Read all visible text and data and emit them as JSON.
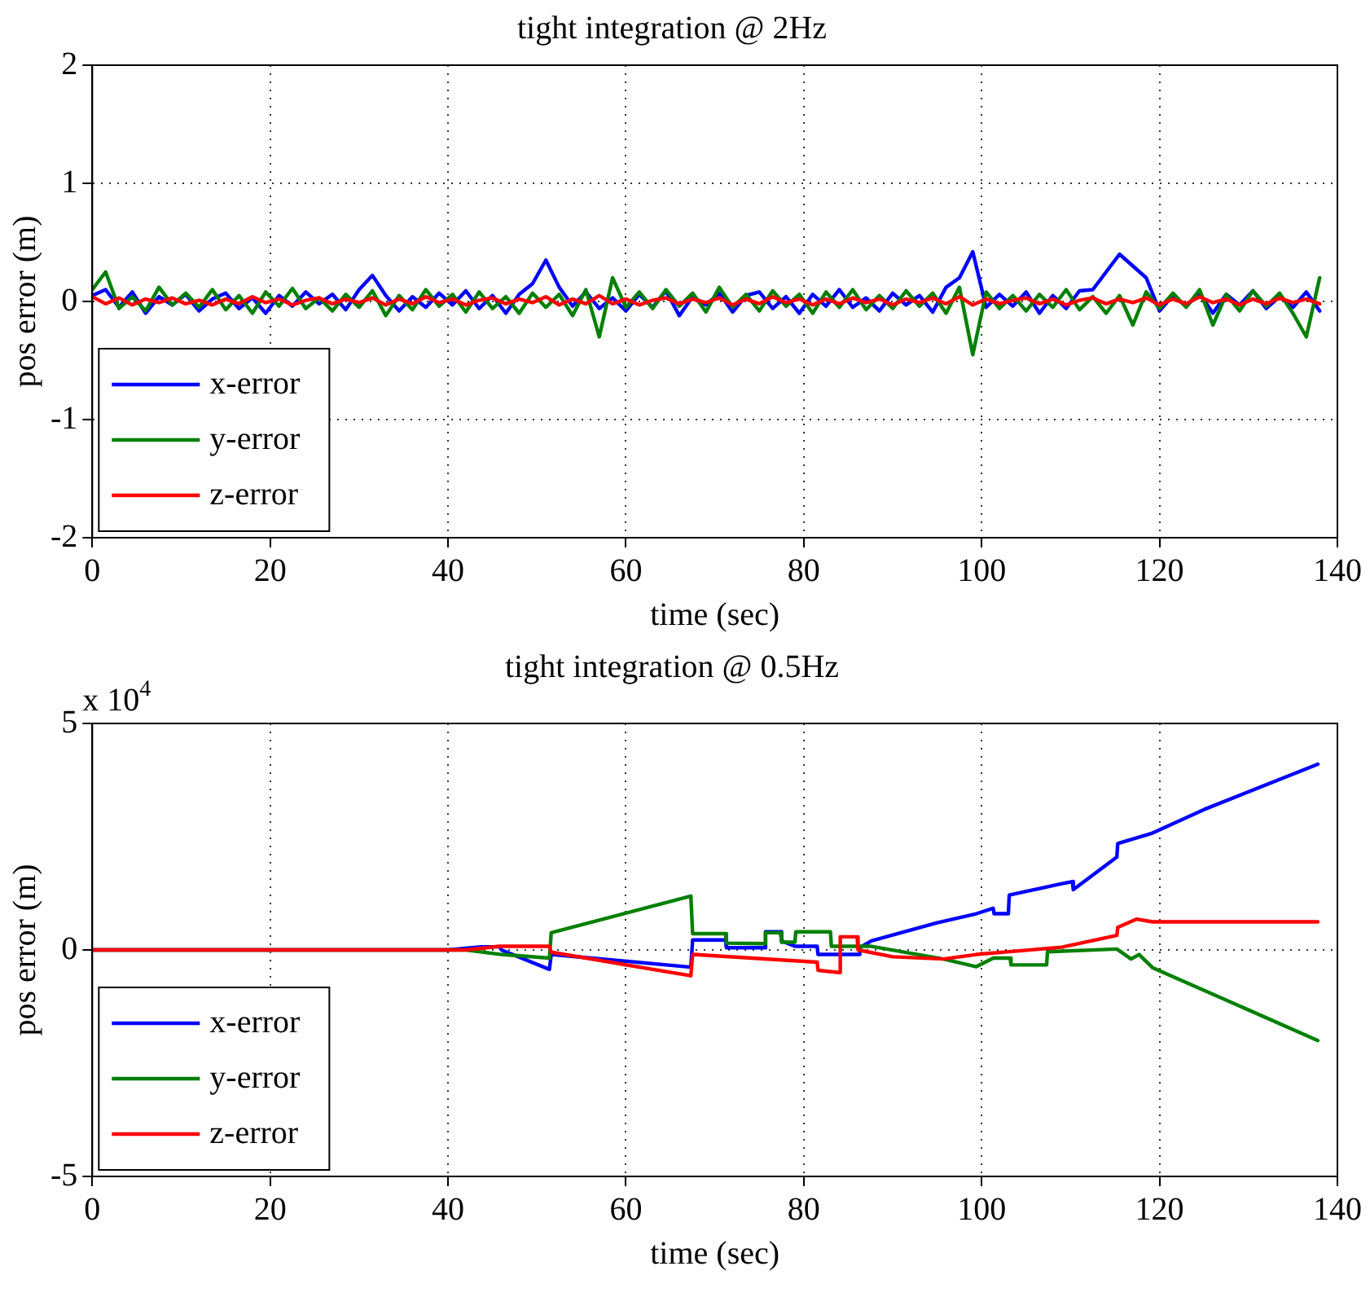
{
  "chart_data": [
    {
      "type": "line",
      "title": "tight integration @ 2Hz",
      "xlabel": "time (sec)",
      "ylabel": "pos error (m)",
      "xlim": [
        0,
        140
      ],
      "xticks": [
        0,
        20,
        40,
        60,
        80,
        100,
        120,
        140
      ],
      "ylim": [
        -2,
        2
      ],
      "yticks": [
        -2,
        -1,
        0,
        1,
        2
      ],
      "grid": true,
      "legend": "bottom left",
      "marker": "none",
      "line_style": "solid",
      "x": [
        0,
        1.5,
        3,
        4.5,
        6,
        7.5,
        9,
        10.5,
        12,
        13.5,
        15,
        16.5,
        18,
        19.5,
        21,
        22.5,
        24,
        25.5,
        27,
        28.5,
        30,
        31.5,
        33,
        34.5,
        36,
        37.5,
        39,
        40.5,
        42,
        43.5,
        45,
        46.5,
        48,
        49.5,
        51,
        52.5,
        54,
        55.5,
        57,
        58.5,
        60,
        61.5,
        63,
        64.5,
        66,
        67.5,
        69,
        70.5,
        72,
        73.5,
        75,
        76.5,
        78,
        79.5,
        81,
        82.5,
        84,
        85.5,
        87,
        88.5,
        90,
        91.5,
        93,
        94.5,
        96,
        97.5,
        99,
        100.5,
        102,
        103.5,
        105,
        106.5,
        108,
        109.5,
        111,
        112.5,
        114,
        115.5,
        117,
        118.5,
        120,
        121.5,
        123,
        124.5,
        126,
        127.5,
        129,
        130.5,
        132,
        133.5,
        135,
        136.5,
        138
      ],
      "series": [
        {
          "name": "x-error",
          "color": "#0000ff",
          "values": [
            0.05,
            0.1,
            -0.05,
            0.08,
            -0.1,
            0.04,
            -0.03,
            0.06,
            -0.08,
            0.02,
            0.07,
            -0.06,
            0.03,
            -0.1,
            0.05,
            -0.04,
            0.08,
            -0.02,
            0.06,
            -0.07,
            0.1,
            0.22,
            0.05,
            -0.08,
            0.04,
            -0.05,
            0.07,
            -0.03,
            0.09,
            -0.06,
            0.05,
            -0.1,
            0.06,
            0.15,
            0.35,
            0.12,
            -0.04,
            0.08,
            -0.06,
            0.03,
            -0.08,
            0.06,
            -0.05,
            0.09,
            -0.12,
            0.04,
            -0.03,
            0.07,
            -0.09,
            0.05,
            0.08,
            -0.06,
            0.04,
            -0.1,
            0.06,
            -0.04,
            0.1,
            -0.05,
            0.03,
            -0.08,
            0.07,
            -0.03,
            0.05,
            -0.09,
            0.12,
            0.2,
            0.42,
            -0.05,
            0.06,
            -0.04,
            0.08,
            -0.1,
            0.05,
            -0.06,
            0.09,
            0.1,
            0.25,
            0.4,
            0.3,
            0.2,
            -0.08,
            0.05,
            -0.04,
            0.07,
            -0.1,
            0.06,
            -0.03,
            0.09,
            -0.06,
            0.04,
            -0.05,
            0.08,
            -0.08
          ]
        },
        {
          "name": "y-error",
          "color": "#008000",
          "values": [
            0.1,
            0.25,
            -0.06,
            0.04,
            -0.08,
            0.12,
            -0.03,
            0.07,
            -0.05,
            0.1,
            -0.07,
            0.05,
            -0.1,
            0.08,
            -0.04,
            0.11,
            -0.06,
            0.03,
            -0.08,
            0.06,
            -0.05,
            0.09,
            -0.12,
            0.05,
            -0.07,
            0.1,
            -0.04,
            0.06,
            -0.09,
            0.08,
            -0.06,
            0.04,
            -0.1,
            0.07,
            -0.05,
            0.06,
            -0.12,
            0.1,
            -0.3,
            0.2,
            -0.05,
            0.08,
            -0.06,
            0.1,
            -0.04,
            0.07,
            -0.09,
            0.12,
            -0.05,
            0.06,
            -0.08,
            0.09,
            -0.04,
            0.06,
            -0.1,
            0.08,
            -0.05,
            0.1,
            -0.07,
            0.05,
            -0.06,
            0.09,
            -0.04,
            0.07,
            -0.1,
            0.12,
            -0.45,
            0.08,
            -0.06,
            0.05,
            -0.08,
            0.06,
            -0.05,
            0.1,
            -0.07,
            0.04,
            -0.1,
            0.05,
            -0.2,
            0.08,
            -0.06,
            0.07,
            -0.05,
            0.1,
            -0.2,
            0.06,
            -0.08,
            0.09,
            -0.04,
            0.07,
            -0.1,
            -0.3,
            0.2
          ]
        },
        {
          "name": "z-error",
          "color": "#ff0000",
          "values": [
            0.04,
            -0.02,
            0.03,
            -0.03,
            0.02,
            -0.01,
            0.03,
            -0.02,
            0.01,
            -0.03,
            0.02,
            -0.02,
            0.04,
            -0.01,
            0.02,
            -0.03,
            0.01,
            0.03,
            -0.02,
            0.02,
            -0.01,
            0.03,
            -0.03,
            0.02,
            -0.02,
            0.04,
            -0.01,
            0.02,
            -0.03,
            0.01,
            0.03,
            -0.02,
            0.02,
            -0.01,
            0.04,
            -0.03,
            0.02,
            -0.02,
            0.05,
            -0.02,
            0.02,
            -0.03,
            0.01,
            0.03,
            -0.02,
            0.02,
            -0.01,
            0.03,
            -0.03,
            0.02,
            -0.02,
            0.04,
            -0.01,
            0.02,
            -0.03,
            0.02,
            -0.02,
            0.03,
            -0.01,
            0.02,
            -0.03,
            0.02,
            -0.01,
            0.03,
            -0.02,
            0.04,
            -0.03,
            0.02,
            -0.02,
            0.01,
            0.03,
            -0.02,
            0.02,
            -0.03,
            0.01,
            0.03,
            -0.02,
            0.02,
            -0.01,
            0.03,
            -0.03,
            0.02,
            -0.02,
            0.04,
            -0.01,
            0.02,
            -0.03,
            0.02,
            -0.02,
            0.03,
            -0.01,
            0.02,
            -0.02
          ]
        }
      ]
    },
    {
      "type": "line",
      "title": "tight integration @ 0.5Hz",
      "xlabel": "time (sec)",
      "ylabel": "pos error (m)",
      "annotations": [
        "x 10$^{4}$"
      ],
      "xlim": [
        0,
        140
      ],
      "xticks": [
        0,
        20,
        40,
        60,
        80,
        100,
        120,
        140
      ],
      "ylim": [
        -5,
        5
      ],
      "yticks": [
        -5,
        0,
        5
      ],
      "grid": true,
      "legend": "bottom left",
      "marker": "none",
      "line_style": "solid",
      "series": [
        {
          "name": "x-error",
          "color": "#0000ff",
          "x": [
            0,
            40,
            43.7,
            45.8,
            46,
            51.4,
            51.6,
            67.3,
            67.5,
            71.2,
            71.3,
            75.6,
            75.7,
            77.4,
            77.5,
            79,
            81.5,
            81.6,
            86.2,
            86.3,
            87.6,
            95,
            99.4,
            101.3,
            101.4,
            103,
            103.1,
            108.7,
            110.2,
            110.3,
            115.2,
            115.3,
            119.2,
            125,
            137.8
          ],
          "values": [
            0,
            0,
            0.07,
            0.07,
            0,
            -0.43,
            -0.1,
            -0.38,
            0.22,
            0.22,
            0.05,
            0.05,
            0.4,
            0.4,
            0.2,
            0.08,
            0.08,
            -0.1,
            -0.1,
            0.05,
            0.2,
            0.6,
            0.8,
            0.92,
            0.8,
            0.8,
            1.21,
            1.45,
            1.51,
            1.33,
            2.05,
            2.35,
            2.58,
            3.1,
            4.1
          ]
        },
        {
          "name": "y-error",
          "color": "#008000",
          "x": [
            0,
            42,
            46,
            51.4,
            51.6,
            67.3,
            67.5,
            71.2,
            71.3,
            75.6,
            75.7,
            77.4,
            77.5,
            79,
            79.1,
            83,
            83.1,
            87.6,
            95.7,
            99.4,
            101.3,
            103.2,
            103.3,
            107.3,
            107.4,
            115.2,
            116.8,
            117.7,
            119.2,
            137.8
          ],
          "values": [
            0,
            0,
            -0.1,
            -0.18,
            0.38,
            1.19,
            0.36,
            0.36,
            0.15,
            0.14,
            0.38,
            0.38,
            0.17,
            0.17,
            0.4,
            0.4,
            0.08,
            0.08,
            -0.2,
            -0.37,
            -0.18,
            -0.18,
            -0.33,
            -0.33,
            -0.04,
            0.02,
            -0.2,
            -0.1,
            -0.39,
            -2.0
          ]
        },
        {
          "name": "z-error",
          "color": "#ff0000",
          "x": [
            0,
            42,
            45.8,
            51.4,
            51.6,
            67.3,
            67.5,
            81.5,
            81.6,
            84,
            84.1,
            86,
            86.1,
            90,
            95.7,
            99.4,
            109,
            115.2,
            115.3,
            117.4,
            119.2,
            137.8
          ],
          "values": [
            0,
            0,
            0.08,
            0.08,
            -0.05,
            -0.57,
            -0.1,
            -0.27,
            -0.45,
            -0.5,
            0.29,
            0.29,
            0,
            -0.15,
            -0.2,
            -0.1,
            0.06,
            0.32,
            0.5,
            0.68,
            0.62,
            0.62
          ]
        }
      ]
    }
  ]
}
